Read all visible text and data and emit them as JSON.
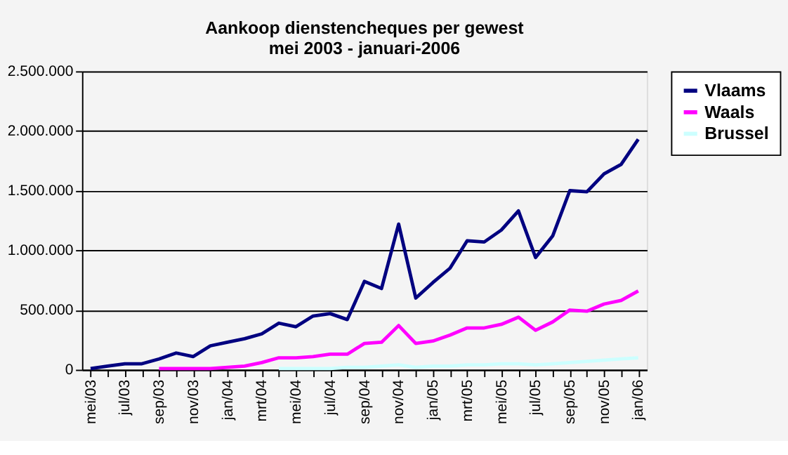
{
  "chart_data": {
    "type": "line",
    "title": "Aankoop dienstencheques per gewest\nmei 2003 - januari-2006",
    "categories": [
      "mei/03",
      null,
      "jul/03",
      null,
      "sep/03",
      null,
      "nov/03",
      null,
      "jan/04",
      null,
      "mrt/04",
      null,
      "mei/04",
      null,
      "jul/04",
      null,
      "sep/04",
      null,
      "nov/04",
      null,
      "jan/05",
      null,
      "mrt/05",
      null,
      "mei/05",
      null,
      "jul/05",
      null,
      "sep/05",
      null,
      "nov/05",
      null,
      "jan/06"
    ],
    "series": [
      {
        "name": "Vlaams",
        "color": "#000080",
        "values": [
          10000,
          30000,
          50000,
          50000,
          90000,
          140000,
          110000,
          200000,
          230000,
          260000,
          300000,
          390000,
          360000,
          450000,
          470000,
          420000,
          740000,
          680000,
          1220000,
          600000,
          730000,
          850000,
          1080000,
          1070000,
          1170000,
          1330000,
          940000,
          1120000,
          1500000,
          1490000,
          1640000,
          1720000,
          1930000
        ]
      },
      {
        "name": "Waals",
        "color": "#ff00ff",
        "values": [
          null,
          null,
          null,
          null,
          10000,
          10000,
          10000,
          10000,
          20000,
          30000,
          60000,
          100000,
          100000,
          110000,
          130000,
          130000,
          220000,
          230000,
          370000,
          220000,
          240000,
          290000,
          350000,
          350000,
          380000,
          440000,
          330000,
          400000,
          500000,
          490000,
          550000,
          580000,
          660000
        ]
      },
      {
        "name": "Brussel",
        "color": "#ccffff",
        "values": [
          null,
          null,
          null,
          null,
          null,
          null,
          null,
          null,
          null,
          null,
          null,
          10000,
          10000,
          10000,
          10000,
          20000,
          20000,
          30000,
          40000,
          20000,
          30000,
          30000,
          40000,
          40000,
          50000,
          50000,
          40000,
          50000,
          60000,
          70000,
          80000,
          90000,
          100000
        ]
      }
    ],
    "ylim": [
      0,
      2500000
    ],
    "yticks": [
      {
        "value": 0,
        "label": "0"
      },
      {
        "value": 500000,
        "label": "500.000"
      },
      {
        "value": 1000000,
        "label": "1.000.000"
      },
      {
        "value": 1500000,
        "label": "1.500.000"
      },
      {
        "value": 2000000,
        "label": "2.000.000"
      },
      {
        "value": 2500000,
        "label": "2.500.000"
      }
    ],
    "grid": "y",
    "legend": "right",
    "marker": "none",
    "line_style": "solid"
  }
}
